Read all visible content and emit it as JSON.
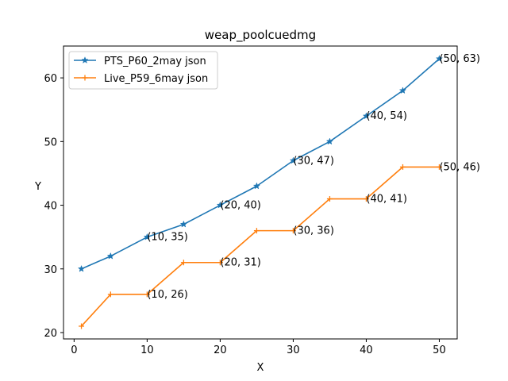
{
  "chart_data": {
    "type": "line",
    "title": "weap_poolcuedmg",
    "xlabel": "X",
    "ylabel": "Y",
    "xlim": [
      -1.45,
      52.45
    ],
    "ylim": [
      19.0,
      65.0
    ],
    "xticks": [
      0,
      10,
      20,
      30,
      40,
      50
    ],
    "yticks": [
      20,
      30,
      40,
      50,
      60
    ],
    "grid": false,
    "legend_position": "upper-left",
    "series": [
      {
        "name": "PTS_P60_2may json",
        "color": "#1f77b4",
        "marker": "star",
        "x": [
          1,
          5,
          10,
          15,
          20,
          25,
          30,
          35,
          40,
          45,
          50
        ],
        "y": [
          30,
          32,
          35,
          37,
          40,
          43,
          47,
          50,
          54,
          58,
          63
        ]
      },
      {
        "name": "Live_P59_6may json",
        "color": "#ff7f0e",
        "marker": "plus",
        "x": [
          1,
          5,
          10,
          15,
          20,
          25,
          30,
          35,
          40,
          45,
          50
        ],
        "y": [
          21,
          26,
          26,
          31,
          31,
          36,
          36,
          41,
          41,
          46,
          46
        ]
      }
    ],
    "annotations": [
      {
        "x": 10,
        "y": 35,
        "text": "(10, 35)"
      },
      {
        "x": 20,
        "y": 40,
        "text": "(20, 40)"
      },
      {
        "x": 30,
        "y": 47,
        "text": "(30, 47)"
      },
      {
        "x": 40,
        "y": 54,
        "text": "(40, 54)"
      },
      {
        "x": 50,
        "y": 63,
        "text": "(50, 63)"
      },
      {
        "x": 10,
        "y": 26,
        "text": "(10, 26)"
      },
      {
        "x": 20,
        "y": 31,
        "text": "(20, 31)"
      },
      {
        "x": 30,
        "y": 36,
        "text": "(30, 36)"
      },
      {
        "x": 40,
        "y": 41,
        "text": "(40, 41)"
      },
      {
        "x": 50,
        "y": 46,
        "text": "(50, 46)"
      }
    ]
  }
}
